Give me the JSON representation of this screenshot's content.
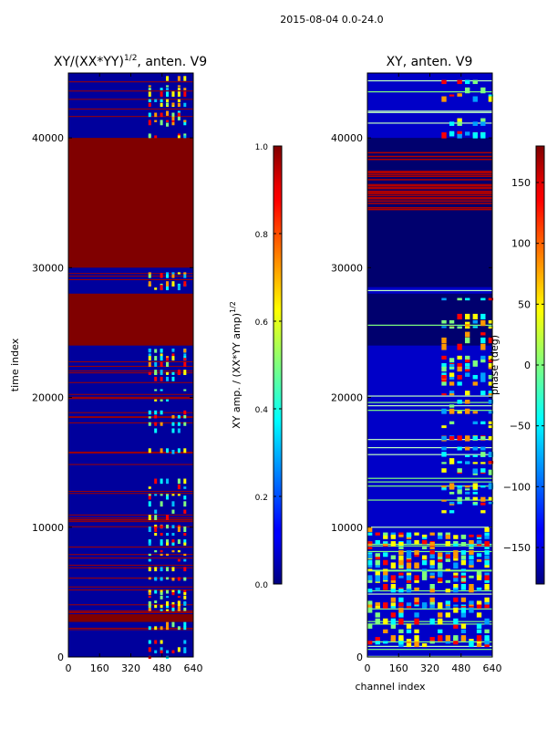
{
  "figure": {
    "suptitle": "2015-08-04 0.0-24.0"
  },
  "chart_data": [
    {
      "type": "heatmap",
      "title_main": "XY/(XX*YY)",
      "title_exp": "1/2",
      "title_suffix": ", anten. V9",
      "xlabel": "",
      "ylabel": "time index",
      "xlim": [
        0,
        640
      ],
      "ylim": [
        0,
        45000
      ],
      "xticks": [
        0,
        160,
        320,
        480,
        640
      ],
      "xtick_labels": [
        "0",
        "160",
        "320",
        "480",
        "640"
      ],
      "yticks": [
        0,
        10000,
        20000,
        30000,
        40000
      ],
      "ytick_labels": [
        "0",
        "10000",
        "20000",
        "30000",
        "40000"
      ],
      "colormap": "jet",
      "colorbar": {
        "label_main": "XY amp. / (XX*YY amp)",
        "label_exp": "1/2",
        "vmin": 0.0,
        "vmax": 1.0,
        "ticks": [
          0.0,
          0.2,
          0.4,
          0.6,
          0.8,
          1.0
        ],
        "tick_labels": [
          "0.0",
          "0.2",
          "0.4",
          "0.6",
          "0.8",
          "1.0"
        ]
      }
    },
    {
      "type": "heatmap",
      "title_main": "XY, anten. V9",
      "title_exp": "",
      "title_suffix": "",
      "xlabel": "channel index",
      "ylabel": "",
      "xlim": [
        0,
        640
      ],
      "ylim": [
        0,
        45000
      ],
      "xticks": [
        0,
        160,
        320,
        480,
        640
      ],
      "xtick_labels": [
        "0",
        "160",
        "320",
        "480",
        "640"
      ],
      "yticks": [
        0,
        10000,
        20000,
        30000,
        40000
      ],
      "ytick_labels": [
        "0",
        "10000",
        "20000",
        "30000",
        "40000"
      ],
      "colormap": "jet",
      "colorbar": {
        "label_main": "phase (deg)",
        "label_exp": "",
        "vmin": -180,
        "vmax": 180,
        "ticks": [
          -150,
          -100,
          -50,
          0,
          50,
          100,
          150
        ],
        "tick_labels": [
          "−150",
          "−100",
          "−50",
          "0",
          "50",
          "100",
          "150"
        ]
      }
    }
  ]
}
